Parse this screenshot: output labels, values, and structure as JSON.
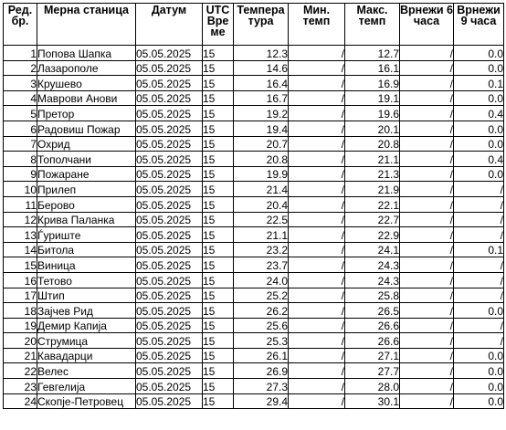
{
  "headers": {
    "no": "Ред. бр.",
    "station": "Мерна станица",
    "date": "Датум",
    "utc": "UTC Вре ме",
    "temp": "Темпера тура",
    "min": "Мин. темп",
    "max": "Макс. темп",
    "rain6": "Врнежи 6 часа",
    "rain9": "Врнежи 9 часа"
  },
  "rows": [
    {
      "no": "1",
      "station": "Попова Шапка",
      "date": "05.05.2025",
      "utc": "15",
      "temp": "12.3",
      "min": "/",
      "max": "12.7",
      "rain6": "/",
      "rain9": "0.0"
    },
    {
      "no": "2",
      "station": "Лазарополе",
      "date": "05.05.2025",
      "utc": "15",
      "temp": "14.6",
      "min": "/",
      "max": "16.1",
      "rain6": "/",
      "rain9": "0.0"
    },
    {
      "no": "3",
      "station": "Крушево",
      "date": "05.05.2025",
      "utc": "15",
      "temp": "16.4",
      "min": "/",
      "max": "16.9",
      "rain6": "/",
      "rain9": "0.1"
    },
    {
      "no": "4",
      "station": "Маврови Анови",
      "date": "05.05.2025",
      "utc": "15",
      "temp": "16.7",
      "min": "/",
      "max": "19.1",
      "rain6": "/",
      "rain9": "0.0"
    },
    {
      "no": "5",
      "station": "Претор",
      "date": "05.05.2025",
      "utc": "15",
      "temp": "19.2",
      "min": "/",
      "max": "19.6",
      "rain6": "/",
      "rain9": "0.4"
    },
    {
      "no": "6",
      "station": "Радовиш Пожар",
      "date": "05.05.2025",
      "utc": "15",
      "temp": "19.4",
      "min": "/",
      "max": "20.1",
      "rain6": "/",
      "rain9": "0.0"
    },
    {
      "no": "7",
      "station": "Охрид",
      "date": "05.05.2025",
      "utc": "15",
      "temp": "20.7",
      "min": "/",
      "max": "20.8",
      "rain6": "/",
      "rain9": "0.0"
    },
    {
      "no": "8",
      "station": "Тополчани",
      "date": "05.05.2025",
      "utc": "15",
      "temp": "20.8",
      "min": "/",
      "max": "21.1",
      "rain6": "/",
      "rain9": "0.4"
    },
    {
      "no": "9",
      "station": "Пожаране",
      "date": "05.05.2025",
      "utc": "15",
      "temp": "19.9",
      "min": "/",
      "max": "21.3",
      "rain6": "/",
      "rain9": "0.0"
    },
    {
      "no": "10",
      "station": "Прилеп",
      "date": "05.05.2025",
      "utc": "15",
      "temp": "21.4",
      "min": "/",
      "max": "21.9",
      "rain6": "/",
      "rain9": "/"
    },
    {
      "no": "11",
      "station": "Берово",
      "date": "05.05.2025",
      "utc": "15",
      "temp": "20.4",
      "min": "/",
      "max": "22.1",
      "rain6": "/",
      "rain9": "/"
    },
    {
      "no": "12",
      "station": "Крива Паланка",
      "date": "05.05.2025",
      "utc": "15",
      "temp": "22.5",
      "min": "/",
      "max": "22.7",
      "rain6": "/",
      "rain9": "/"
    },
    {
      "no": "13",
      "station": "Ѓуриште",
      "date": "05.05.2025",
      "utc": "15",
      "temp": "21.1",
      "min": "/",
      "max": "22.9",
      "rain6": "/",
      "rain9": "/"
    },
    {
      "no": "14",
      "station": "Битола",
      "date": "05.05.2025",
      "utc": "15",
      "temp": "23.2",
      "min": "/",
      "max": "24.1",
      "rain6": "/",
      "rain9": "0.1"
    },
    {
      "no": "15",
      "station": "Виница",
      "date": "05.05.2025",
      "utc": "15",
      "temp": "23.7",
      "min": "/",
      "max": "24.3",
      "rain6": "/",
      "rain9": "/"
    },
    {
      "no": "16",
      "station": "Тетово",
      "date": "05.05.2025",
      "utc": "15",
      "temp": "24.0",
      "min": "/",
      "max": "24.3",
      "rain6": "/",
      "rain9": "/"
    },
    {
      "no": "17",
      "station": "Штип",
      "date": "05.05.2025",
      "utc": "15",
      "temp": "25.2",
      "min": "/",
      "max": "25.8",
      "rain6": "/",
      "rain9": "/"
    },
    {
      "no": "18",
      "station": "Зајчев Рид",
      "date": "05.05.2025",
      "utc": "15",
      "temp": "26.2",
      "min": "/",
      "max": "26.5",
      "rain6": "/",
      "rain9": "0.0"
    },
    {
      "no": "19",
      "station": "Демир Капија",
      "date": "05.05.2025",
      "utc": "15",
      "temp": "25.6",
      "min": "/",
      "max": "26.6",
      "rain6": "/",
      "rain9": "/"
    },
    {
      "no": "20",
      "station": "Струмица",
      "date": "05.05.2025",
      "utc": "15",
      "temp": "25.3",
      "min": "/",
      "max": "26.6",
      "rain6": "/",
      "rain9": "/"
    },
    {
      "no": "21",
      "station": "Кавадарци",
      "date": "05.05.2025",
      "utc": "15",
      "temp": "26.1",
      "min": "/",
      "max": "27.1",
      "rain6": "/",
      "rain9": "0.0"
    },
    {
      "no": "22",
      "station": "Велес",
      "date": "05.05.2025",
      "utc": "15",
      "temp": "26.9",
      "min": "/",
      "max": "27.7",
      "rain6": "/",
      "rain9": "0.0"
    },
    {
      "no": "23",
      "station": "Гевгелија",
      "date": "05.05.2025",
      "utc": "15",
      "temp": "27.3",
      "min": "/",
      "max": "28.0",
      "rain6": "/",
      "rain9": "0.0"
    },
    {
      "no": "24",
      "station": "Скопје-Петровец",
      "date": "05.05.2025",
      "utc": "15",
      "temp": "29.4",
      "min": "/",
      "max": "30.1",
      "rain6": "/",
      "rain9": "0.0"
    }
  ]
}
